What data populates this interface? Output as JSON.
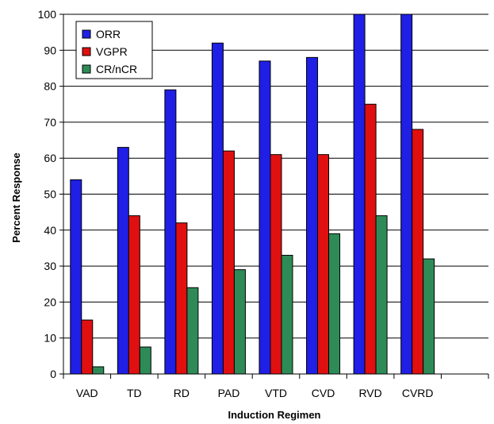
{
  "chart_data": {
    "type": "bar",
    "xlabel": "Induction Regimen",
    "ylabel": "Percent Response",
    "ylim": [
      0,
      100
    ],
    "yticks": [
      0,
      10,
      20,
      30,
      40,
      50,
      60,
      70,
      80,
      90,
      100
    ],
    "grid": true,
    "legend_position": "top-left",
    "categories": [
      "VAD",
      "TD",
      "RD",
      "PAD",
      "VTD",
      "CVD",
      "RVD",
      "CVRD",
      ""
    ],
    "series": [
      {
        "name": "ORR",
        "color": "#1f1fe6",
        "values": [
          54,
          63,
          79,
          92,
          87,
          88,
          100,
          100,
          null
        ]
      },
      {
        "name": "VGPR",
        "color": "#e01010",
        "values": [
          15,
          44,
          42,
          62,
          61,
          61,
          75,
          68,
          null
        ]
      },
      {
        "name": "CR/nCR",
        "color": "#2e8b57",
        "values": [
          2,
          7.5,
          24,
          29,
          33,
          39,
          44,
          32,
          null
        ]
      }
    ]
  }
}
